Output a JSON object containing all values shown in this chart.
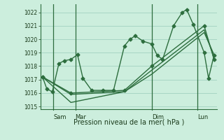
{
  "bg_color": "#cceedd",
  "grid_color": "#99ccbb",
  "line_color": "#2d6e3e",
  "marker_color": "#2d6e3e",
  "xlabel": "Pression niveau de la mer( hPa )",
  "ylim": [
    1014.8,
    1022.6
  ],
  "yticks": [
    1015,
    1016,
    1017,
    1018,
    1019,
    1020,
    1021,
    1022
  ],
  "xlim": [
    -0.2,
    16.0
  ],
  "day_positions": [
    1.0,
    3.0,
    10.0,
    14.2
  ],
  "day_labels": [
    "Sam",
    "Mar",
    "Dim",
    "Lun"
  ],
  "day_vlines": [
    1.0,
    3.0,
    10.0,
    14.2
  ],
  "series1_x": [
    0.0,
    0.4,
    0.9,
    1.5,
    2.0,
    2.6,
    3.2,
    3.7,
    4.5,
    5.5,
    6.5,
    7.5,
    8.0,
    8.5,
    9.2,
    10.0,
    10.5,
    11.0,
    12.0,
    12.8,
    13.2,
    13.8,
    14.8,
    15.2,
    15.7
  ],
  "series1_y": [
    1017.2,
    1016.3,
    1016.1,
    1018.2,
    1018.4,
    1018.5,
    1018.85,
    1017.1,
    1016.2,
    1016.2,
    1016.2,
    1019.5,
    1020.0,
    1020.25,
    1019.85,
    1019.65,
    1018.8,
    1018.5,
    1021.0,
    1022.0,
    1022.2,
    1021.1,
    1019.0,
    1017.1,
    1018.8
  ],
  "series2_x": [
    0.0,
    2.6,
    7.5,
    10.0,
    14.8,
    15.7
  ],
  "series2_y": [
    1017.2,
    1016.0,
    1016.2,
    1018.0,
    1021.0,
    1018.5
  ],
  "series3_x": [
    0.0,
    2.6,
    7.5,
    10.0,
    14.8,
    15.7
  ],
  "series3_y": [
    1017.2,
    1015.3,
    1016.1,
    1017.4,
    1020.5,
    1018.85
  ],
  "series4_x": [
    0.0,
    2.6,
    7.5,
    10.0,
    14.8,
    15.7
  ],
  "series4_y": [
    1017.2,
    1015.9,
    1016.1,
    1017.7,
    1020.7,
    1018.65
  ]
}
